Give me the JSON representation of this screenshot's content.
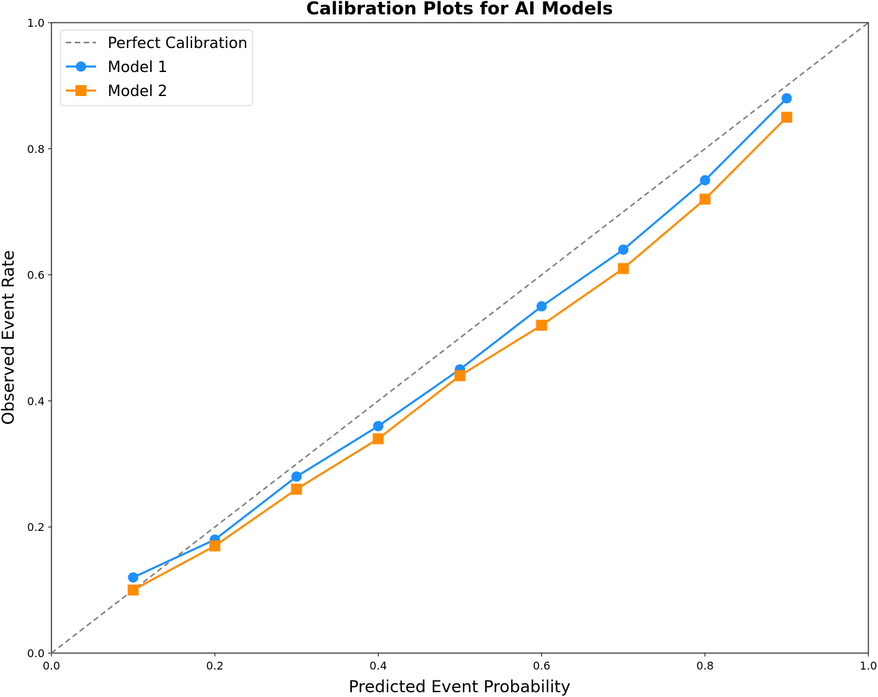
{
  "chart_data": {
    "type": "line",
    "title": "Calibration Plots for AI Models",
    "xlabel": "Predicted Event Probability",
    "ylabel": "Observed Event Rate",
    "xlim": [
      0.0,
      1.0
    ],
    "ylim": [
      0.0,
      1.0
    ],
    "xticks": [
      "0.0",
      "0.2",
      "0.4",
      "0.6",
      "0.8",
      "1.0"
    ],
    "yticks": [
      "0.0",
      "0.2",
      "0.4",
      "0.6",
      "0.8",
      "1.0"
    ],
    "grid": false,
    "legend_position": "upper-left",
    "reference_line": {
      "name": "Perfect Calibration",
      "x": [
        0.0,
        1.0
      ],
      "y": [
        0.0,
        1.0
      ],
      "color": "#808080",
      "style": "dashed"
    },
    "x": [
      0.1,
      0.2,
      0.3,
      0.4,
      0.5,
      0.6,
      0.7,
      0.8,
      0.9
    ],
    "series": [
      {
        "name": "Model 1",
        "marker": "circle",
        "color": "#1e90ff",
        "values": [
          0.12,
          0.18,
          0.28,
          0.36,
          0.45,
          0.55,
          0.64,
          0.75,
          0.88
        ]
      },
      {
        "name": "Model 2",
        "marker": "square",
        "color": "#ff8c00",
        "values": [
          0.1,
          0.17,
          0.26,
          0.34,
          0.44,
          0.52,
          0.61,
          0.72,
          0.85
        ]
      }
    ]
  }
}
